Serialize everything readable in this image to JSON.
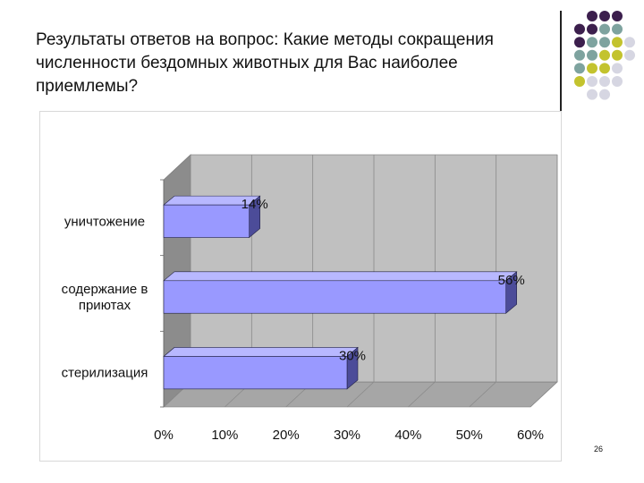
{
  "slide": {
    "title": "  Результаты ответов на вопрос: Какие методы сокращения численности  бездомных животных для Вас наиболее приемлемы?",
    "page_number": "26"
  },
  "decoration": {
    "dot_colors": [
      "#3c1f4d",
      "#7ea39f",
      "#c3c32e",
      "#d6d6e2"
    ]
  },
  "chart_data": {
    "type": "bar",
    "orientation": "horizontal",
    "categories": [
      "уничтожение",
      "содержание в\nприютах",
      "стерилизация"
    ],
    "values": [
      14,
      56,
      30
    ],
    "data_labels": [
      "14%",
      "56%",
      "30%"
    ],
    "xlim": [
      0,
      60
    ],
    "x_ticks": [
      "0%",
      "10%",
      "20%",
      "30%",
      "40%",
      "50%",
      "60%"
    ],
    "grid": true,
    "legend": "none",
    "colors": {
      "bar_front": "#9999ff",
      "bar_top": "#b8b8ff",
      "bar_side": "#4c4c99",
      "wall": "#c0c0c0",
      "floor": "#a6a6a6",
      "grid": "#8a8a8a"
    }
  }
}
